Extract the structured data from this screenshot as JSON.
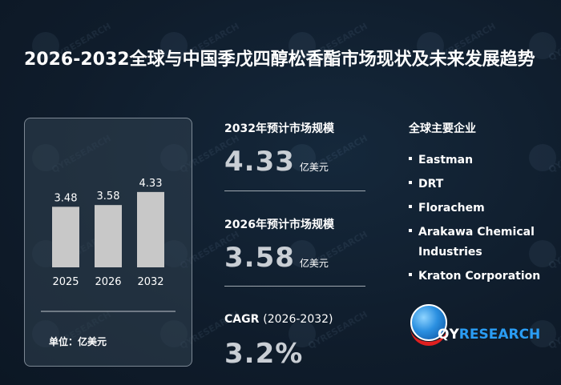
{
  "title": "2026-2032全球与中国季戊四醇松香酯市场现状及未来发展趋势",
  "chart_data": {
    "type": "bar",
    "categories": [
      "2025",
      "2026",
      "2032"
    ],
    "values": [
      3.48,
      3.58,
      4.33
    ],
    "value_labels": [
      "3.48",
      "3.58",
      "4.33"
    ],
    "unit_label": "单位：亿美元",
    "bar_color": "#c8c8c8",
    "ylim": [
      0,
      4.6
    ]
  },
  "stats": {
    "market_2032": {
      "label": "2032年预计市场规模",
      "value": "4.33",
      "unit": "亿美元"
    },
    "market_2026": {
      "label": "2026年预计市场规模",
      "value": "3.58",
      "unit": "亿美元"
    },
    "cagr": {
      "label": "CAGR",
      "range": "(2026-2032)",
      "value": "3.2%"
    }
  },
  "companies": {
    "title": "全球主要企业",
    "items": [
      "Eastman",
      "DRT",
      "Florachem",
      "Arakawa Chemical Industries",
      "Kraton Corporation"
    ]
  },
  "logo": {
    "part1": "QY",
    "part2": "RESEARCH"
  },
  "watermark": "QYRESEARCH",
  "colors": {
    "background": "#0f1c2b",
    "accent": "#2a9df4",
    "value_gray": "#c9ced4"
  }
}
